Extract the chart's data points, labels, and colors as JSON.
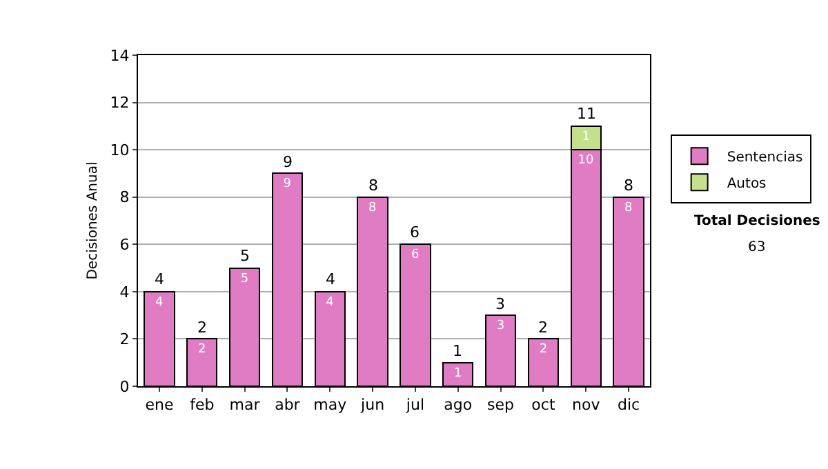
{
  "chart_data": {
    "type": "bar",
    "stacked": true,
    "ylabel": "Decisiones Anual",
    "categories": [
      "ene",
      "feb",
      "mar",
      "abr",
      "may",
      "jun",
      "jul",
      "ago",
      "sep",
      "oct",
      "nov",
      "dic"
    ],
    "series": [
      {
        "name": "Sentencias",
        "color": "#e07cc4",
        "values": [
          4,
          2,
          5,
          9,
          4,
          8,
          6,
          1,
          3,
          2,
          10,
          8
        ],
        "value_labels": [
          "4",
          "2",
          "5",
          "9",
          "4",
          "8",
          "6",
          "1",
          "3",
          "2",
          "10",
          "8"
        ]
      },
      {
        "name": "Autos",
        "color": "#c4e08c",
        "values": [
          null,
          null,
          null,
          null,
          null,
          null,
          null,
          null,
          null,
          null,
          1,
          null
        ],
        "value_labels": [
          null,
          null,
          null,
          null,
          null,
          null,
          null,
          null,
          null,
          null,
          "1",
          null
        ]
      }
    ],
    "totals": [
      "4",
      "2",
      "5",
      "9",
      "4",
      "8",
      "6",
      "1",
      "3",
      "2",
      "11",
      "8"
    ],
    "ylim": [
      0,
      14
    ],
    "yticks": [
      0,
      2,
      4,
      6,
      8,
      10,
      12,
      14
    ],
    "grid": "y",
    "legend": "right",
    "annotations": [
      "Total Decisiones",
      "63"
    ]
  }
}
